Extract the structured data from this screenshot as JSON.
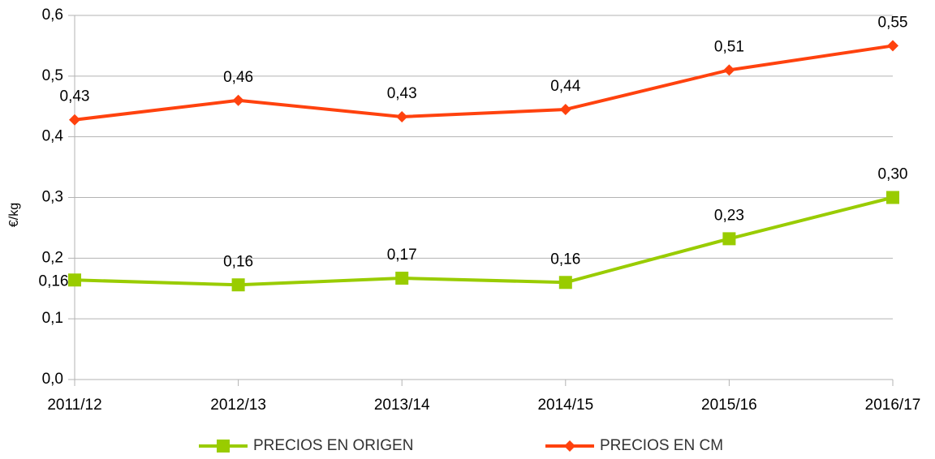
{
  "chart_data": {
    "type": "line",
    "ylabel": "€/kg",
    "categories": [
      "2011/12",
      "2012/13",
      "2013/14",
      "2014/15",
      "2015/16",
      "2016/17"
    ],
    "series": [
      {
        "name": "PRECIOS EN ORIGEN",
        "color": "#99cc00",
        "marker": "square",
        "values": [
          0.164,
          0.156,
          0.167,
          0.16,
          0.232,
          0.3
        ],
        "value_labels": [
          "0,16",
          "0,16",
          "0,17",
          "0,16",
          "0,23",
          "0,30"
        ]
      },
      {
        "name": "PRECIOS EN CM",
        "color": "#ff420e",
        "marker": "diamond",
        "values": [
          0.428,
          0.46,
          0.433,
          0.445,
          0.51,
          0.55
        ],
        "value_labels": [
          "0,43",
          "0,46",
          "0,43",
          "0,44",
          "0,51",
          "0,55"
        ]
      }
    ],
    "ylim": [
      0,
      0.6
    ],
    "yticks": [
      {
        "value": 0,
        "label": "0,0"
      },
      {
        "value": 0.1,
        "label": "0,1"
      },
      {
        "value": 0.2,
        "label": "0,2"
      },
      {
        "value": 0.3,
        "label": "0,3"
      },
      {
        "value": 0.4,
        "label": "0,4"
      },
      {
        "value": 0.5,
        "label": "0,5"
      },
      {
        "value": 0.6,
        "label": "0,6"
      }
    ],
    "grid": true,
    "legend": "bottom"
  }
}
